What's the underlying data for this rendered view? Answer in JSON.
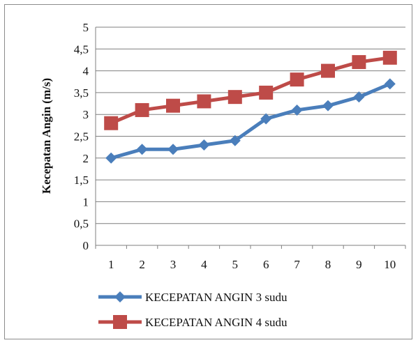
{
  "chart_data": {
    "type": "line",
    "title": "",
    "xlabel": "",
    "ylabel": "Kecepatan Angin (m/s)",
    "x": [
      "1",
      "2",
      "3",
      "4",
      "5",
      "6",
      "7",
      "8",
      "9",
      "10"
    ],
    "ylim": [
      0,
      5
    ],
    "yticks": [
      "0",
      "0,5",
      "1",
      "1,5",
      "2",
      "2,5",
      "3",
      "3,5",
      "4",
      "4,5",
      "5"
    ],
    "grid": true,
    "legend": "bottom",
    "series": [
      {
        "name": "KECEPATAN ANGIN 3 sudu",
        "color": "#4a7ebb",
        "marker": "diamond",
        "values": [
          2.0,
          2.2,
          2.2,
          2.3,
          2.4,
          2.9,
          3.1,
          3.2,
          3.4,
          3.7
        ]
      },
      {
        "name": "KECEPATAN ANGIN 4 sudu",
        "color": "#be4b48",
        "marker": "square",
        "values": [
          2.8,
          3.1,
          3.2,
          3.3,
          3.4,
          3.5,
          3.8,
          4.0,
          4.2,
          4.3
        ]
      }
    ]
  }
}
